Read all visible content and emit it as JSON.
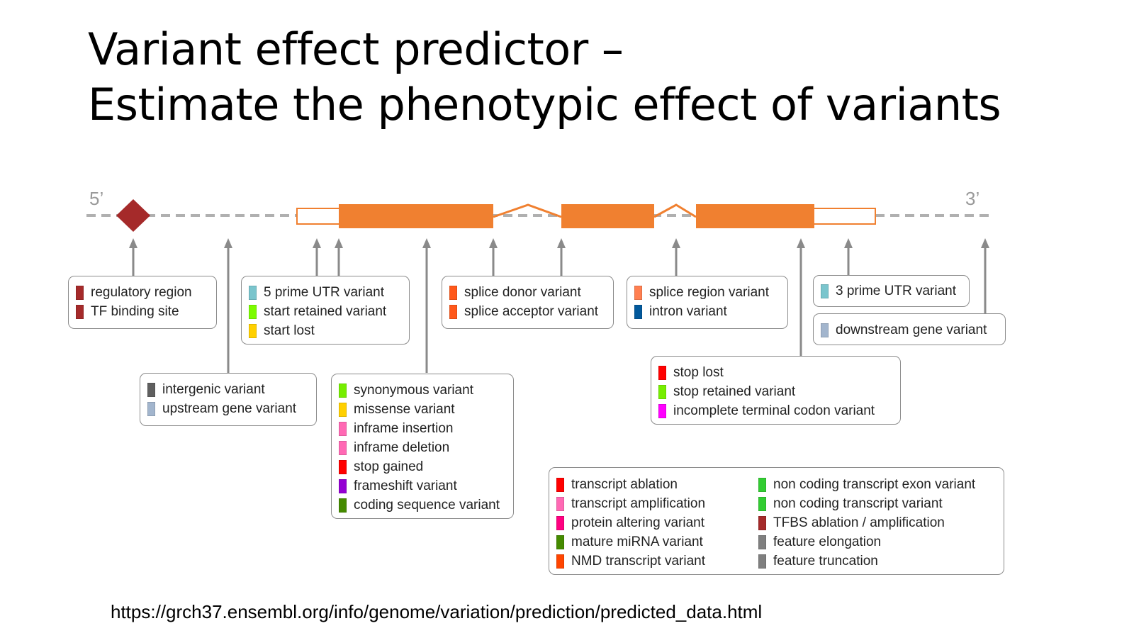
{
  "slide": {
    "title_line1": "Variant effect predictor –",
    "title_line2": "Estimate the phenotypic effect of variants",
    "url": "https://grch37.ensembl.org/info/genome/variation/prediction/predicted_data.html"
  },
  "diagram": {
    "label_5prime": "5’",
    "label_3prime": "3’",
    "colors": {
      "exon": "#f08030",
      "utr_fill": "#ffffff",
      "regulatory": "#a52a2a",
      "line": "#b0b0b0",
      "arrow": "#8a8a8a"
    }
  },
  "legend_boxes": {
    "regulatory": [
      {
        "label": "regulatory region",
        "color": "#a52a2a"
      },
      {
        "label": "TF binding site",
        "color": "#a52a2a"
      }
    ],
    "intergenic": [
      {
        "label": "intergenic variant",
        "color": "#5f5f5f"
      },
      {
        "label": "upstream gene variant",
        "color": "#a2b5cd"
      }
    ],
    "utr5": [
      {
        "label": "5 prime UTR variant",
        "color": "#7ac5cd"
      },
      {
        "label": "start retained variant",
        "color": "#7cfc00"
      },
      {
        "label": "start lost",
        "color": "#ffd000"
      }
    ],
    "coding": [
      {
        "label": "synonymous variant",
        "color": "#76ee00"
      },
      {
        "label": "missense variant",
        "color": "#ffd000"
      },
      {
        "label": "inframe insertion",
        "color": "#ff69b4"
      },
      {
        "label": "inframe deletion",
        "color": "#ff69b4"
      },
      {
        "label": "stop gained",
        "color": "#ff0000"
      },
      {
        "label": "frameshift variant",
        "color": "#9400d3"
      },
      {
        "label": "coding sequence variant",
        "color": "#458b00"
      }
    ],
    "splice": [
      {
        "label": "splice donor variant",
        "color": "#ff581a"
      },
      {
        "label": "splice acceptor variant",
        "color": "#ff581a"
      }
    ],
    "splice_region": [
      {
        "label": "splice region variant",
        "color": "#ff7f50"
      },
      {
        "label": "intron variant",
        "color": "#02599c"
      }
    ],
    "stop": [
      {
        "label": "stop lost",
        "color": "#ff0000"
      },
      {
        "label": "stop retained variant",
        "color": "#76ee00"
      },
      {
        "label": "incomplete terminal codon variant",
        "color": "#ff00ff"
      }
    ],
    "utr3": [
      {
        "label": "3 prime UTR variant",
        "color": "#7ac5cd"
      }
    ],
    "downstream": [
      {
        "label": "downstream gene variant",
        "color": "#a2b5cd"
      }
    ],
    "transcript_left": [
      {
        "label": "transcript ablation",
        "color": "#ff0000"
      },
      {
        "label": "transcript amplification",
        "color": "#ff69b4"
      },
      {
        "label": "protein altering variant",
        "color": "#ff0080"
      },
      {
        "label": "mature miRNA variant",
        "color": "#458b00"
      },
      {
        "label": "NMD transcript variant",
        "color": "#ff4500"
      }
    ],
    "transcript_right": [
      {
        "label": "non coding transcript exon variant",
        "color": "#32cd32"
      },
      {
        "label": "non coding transcript variant",
        "color": "#32cd32"
      },
      {
        "label": "TFBS ablation / amplification",
        "color": "#a52a2a"
      },
      {
        "label": "feature elongation",
        "color": "#7f7f7f"
      },
      {
        "label": "feature truncation",
        "color": "#7f7f7f"
      }
    ]
  }
}
